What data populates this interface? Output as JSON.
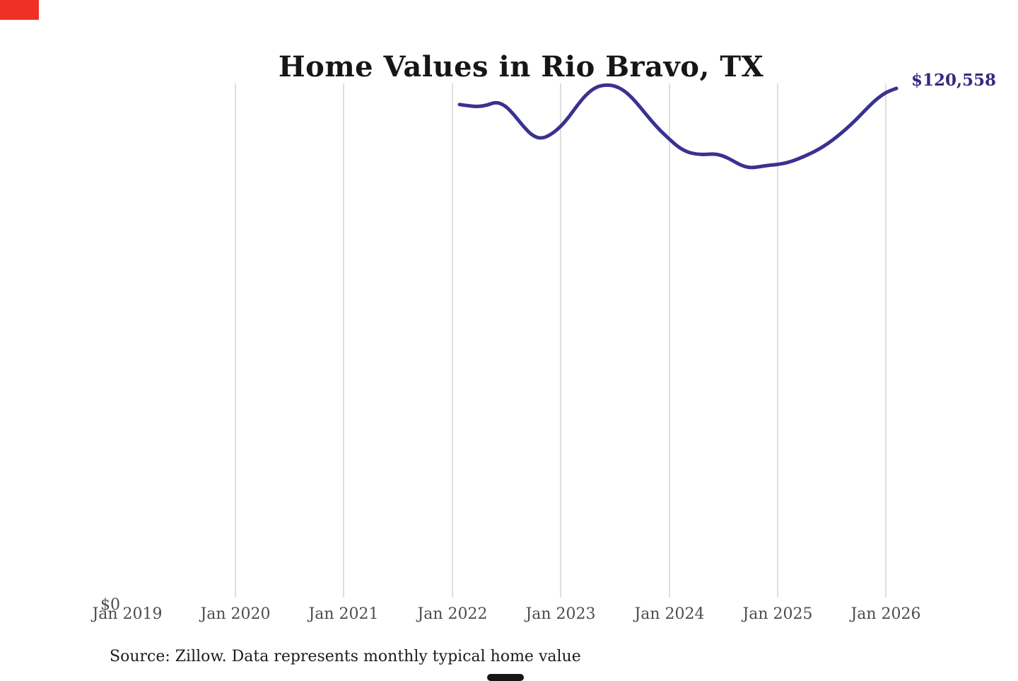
{
  "page": {
    "title": "Home Values in Rio Bravo, TX",
    "source_note": "Source: Zillow. Data represents monthly typical home value"
  },
  "chart_data": {
    "type": "line",
    "title": "Home Values in Rio Bravo, TX",
    "xlabel": "",
    "ylabel": "",
    "x_tick_labels": [
      "Jan 2019",
      "Jan 2020",
      "Jan 2021",
      "Jan 2022",
      "Jan 2023",
      "Jan 2024",
      "Jan 2025",
      "Jan 2026"
    ],
    "y_tick_labels": [
      "$0"
    ],
    "ylim": [
      0,
      145000
    ],
    "grid": "vertical-gridlines-only",
    "legend_position": "none",
    "colors": {
      "line": "#3a3191",
      "end_label": "#312b80",
      "gridline": "#cccccc",
      "tick_text": "#4d4d4d",
      "title_text": "#161616",
      "source_text": "#1c1c1c",
      "marker_red": "#ee3124",
      "bottom_bar": "#161616"
    },
    "end_annotation": {
      "label": "$120,558",
      "value": 120558
    },
    "series": [
      {
        "name": "Monthly typical home value",
        "x": [
          "2022-02",
          "2022-03",
          "2022-04",
          "2022-05",
          "2022-06",
          "2022-07",
          "2022-08",
          "2022-09",
          "2022-10",
          "2022-11",
          "2022-12",
          "2023-01",
          "2023-02",
          "2023-03",
          "2023-04",
          "2023-05",
          "2023-06",
          "2023-07",
          "2023-08",
          "2023-09",
          "2023-10",
          "2023-11",
          "2023-12",
          "2024-01",
          "2024-02",
          "2024-03",
          "2024-04",
          "2024-05",
          "2024-06",
          "2024-07",
          "2024-08",
          "2024-09",
          "2024-10",
          "2024-11",
          "2024-12",
          "2025-01",
          "2025-02",
          "2025-03",
          "2025-04",
          "2025-05",
          "2025-06",
          "2025-07",
          "2025-08",
          "2025-09",
          "2025-10",
          "2025-11",
          "2025-12",
          "2026-01",
          "2026-02"
        ],
        "values": [
          116800,
          116500,
          116300,
          116600,
          117400,
          116600,
          114400,
          111700,
          109500,
          108800,
          109700,
          111400,
          113800,
          116800,
          119300,
          120900,
          121400,
          121200,
          120200,
          118300,
          115800,
          113200,
          110800,
          108800,
          106900,
          105700,
          105200,
          105100,
          105300,
          104800,
          103700,
          102500,
          102000,
          102300,
          102600,
          102800,
          103200,
          103900,
          104800,
          105800,
          107000,
          108500,
          110200,
          112100,
          114200,
          116400,
          118400,
          119800,
          120558
        ]
      }
    ]
  }
}
